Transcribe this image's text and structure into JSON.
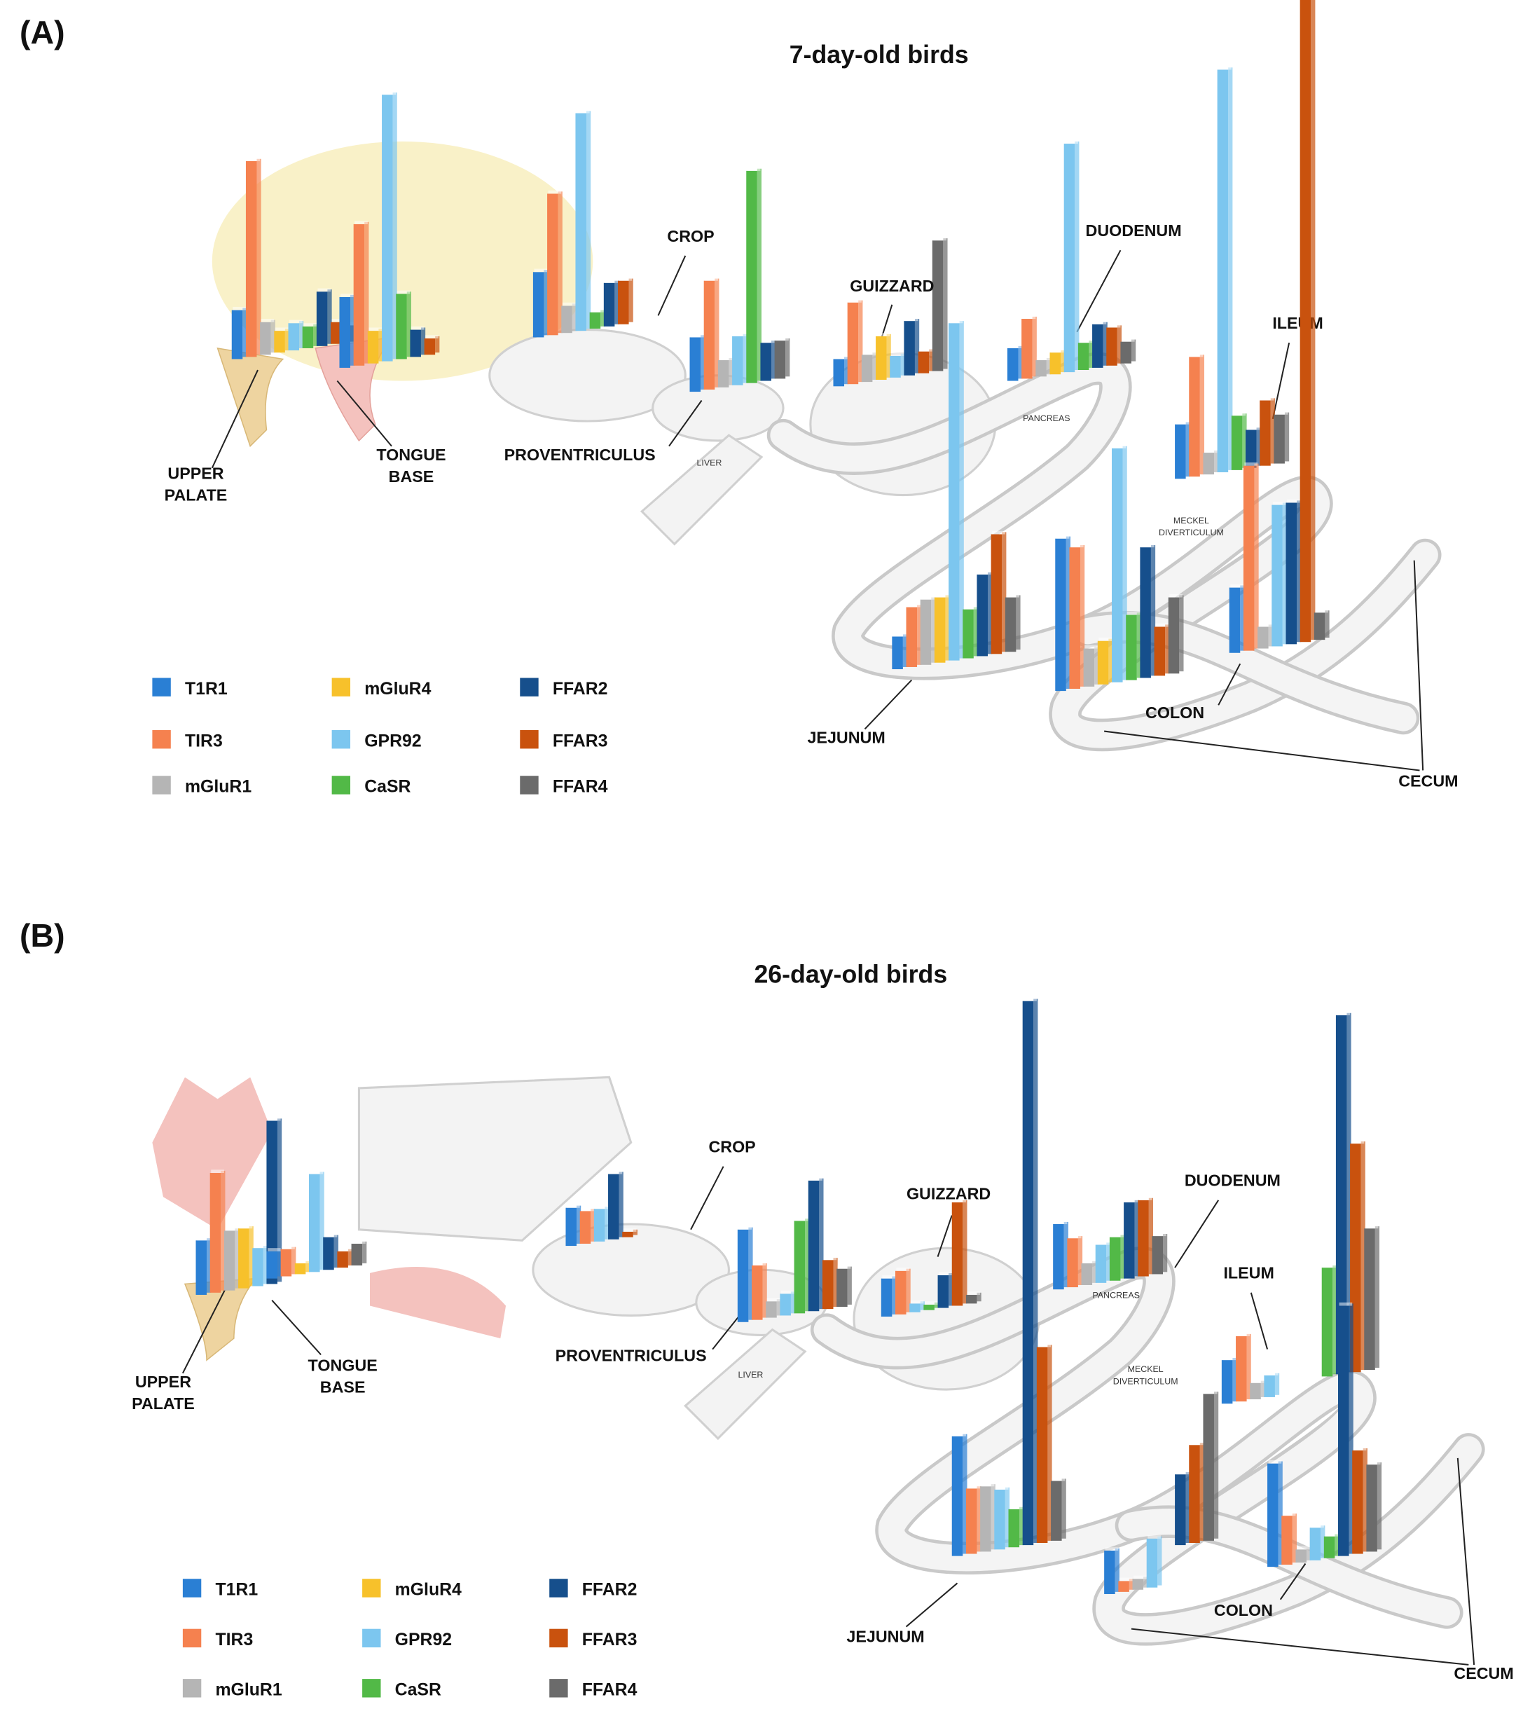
{
  "receptors": [
    {
      "name": "T1R1",
      "color": "#2a7fd4"
    },
    {
      "name": "TIR3",
      "color": "#f5814f"
    },
    {
      "name": "mGluR1",
      "color": "#b5b5b5"
    },
    {
      "name": "mGluR4",
      "color": "#f7c12b"
    },
    {
      "name": "GPR92",
      "color": "#7cc6ef"
    },
    {
      "name": "CaSR",
      "color": "#52b947"
    },
    {
      "name": "FFAR2",
      "color": "#164f8c"
    },
    {
      "name": "FFAR3",
      "color": "#c9520e"
    },
    {
      "name": "FFAR4",
      "color": "#6b6b6b"
    }
  ],
  "panels": [
    {
      "label": "(A)",
      "title": "7-day-old birds",
      "regions": [
        {
          "label": [
            "UPPER",
            "PALATE"
          ],
          "values": [
            45,
            180,
            30,
            20,
            25,
            20,
            50,
            20,
            15
          ]
        },
        {
          "label": [
            "TONGUE",
            "BASE"
          ],
          "values": [
            65,
            130,
            null,
            30,
            245,
            60,
            25,
            15,
            null
          ]
        },
        {
          "label": [
            "PROVENTRICULUS"
          ],
          "values": [
            60,
            130,
            25,
            null,
            200,
            15,
            40,
            40,
            null
          ]
        },
        {
          "label": [
            "CROP"
          ],
          "values": [
            50,
            100,
            25,
            null,
            45,
            195,
            35,
            null,
            35
          ]
        },
        {
          "label": [
            "GUIZZARD"
          ],
          "values": [
            25,
            75,
            25,
            40,
            20,
            null,
            50,
            20,
            120
          ]
        },
        {
          "label": [
            "DUODENUM"
          ],
          "values": [
            30,
            55,
            15,
            20,
            210,
            25,
            40,
            35,
            20
          ]
        },
        {
          "label": [
            "ILEUM"
          ],
          "values": [
            50,
            110,
            20,
            null,
            370,
            50,
            35,
            60,
            45
          ]
        },
        {
          "label": [
            "JEJUNUM"
          ],
          "values": [
            30,
            55,
            60,
            60,
            310,
            45,
            75,
            110,
            50
          ]
        },
        {
          "label": null,
          "values": [
            140,
            130,
            35,
            40,
            215,
            60,
            120,
            45,
            70
          ]
        },
        {
          "label": [
            "COLON"
          ],
          "values": [
            60,
            170,
            20,
            null,
            130,
            null,
            130,
            600,
            25
          ]
        },
        {
          "label": [
            "CECUM"
          ]
        }
      ],
      "annotations": [
        [
          "LIVER"
        ],
        [
          "PANCREAS"
        ],
        [
          "MECKEL",
          "DIVERTICULUM"
        ]
      ]
    },
    {
      "label": "(B)",
      "title": "26-day-old birds",
      "regions": [
        {
          "label": [
            "UPPER",
            "PALATE"
          ],
          "values": [
            50,
            110,
            55,
            55,
            35,
            null,
            150,
            null,
            null
          ]
        },
        {
          "label": [
            "TONGUE",
            "BASE"
          ],
          "values": [
            25,
            25,
            null,
            10,
            90,
            null,
            30,
            15,
            20
          ]
        },
        {
          "label": [
            "PROVENTRICULUS"
          ],
          "values": [
            35,
            30,
            null,
            null,
            30,
            null,
            60,
            5,
            null
          ]
        },
        {
          "label": [
            "CROP"
          ],
          "values": [
            85,
            50,
            15,
            null,
            20,
            85,
            120,
            45,
            35
          ]
        },
        {
          "label": [
            "GUIZZARD"
          ],
          "values": [
            35,
            40,
            null,
            null,
            8,
            5,
            30,
            95,
            8
          ]
        },
        {
          "label": [
            "DUODENUM"
          ],
          "values": [
            60,
            45,
            20,
            null,
            35,
            40,
            70,
            70,
            35
          ]
        },
        {
          "label": [
            "ILEUM"
          ],
          "values": [
            40,
            60,
            15,
            null,
            20,
            null,
            null,
            null,
            null
          ]
        },
        {
          "label": null,
          "values": [
            null,
            null,
            null,
            null,
            null,
            100,
            330,
            210,
            130
          ]
        },
        {
          "label": [
            "JEJUNUM"
          ],
          "values": [
            110,
            60,
            60,
            null,
            55,
            35,
            500,
            180,
            55
          ]
        },
        {
          "label": null,
          "values": [
            null,
            null,
            null,
            null,
            null,
            null,
            65,
            90,
            135
          ]
        },
        {
          "label": null,
          "values": [
            40,
            10,
            10,
            null,
            45,
            null,
            null,
            null,
            null
          ]
        },
        {
          "label": [
            "COLON"
          ],
          "values": [
            95,
            45,
            12,
            null,
            30,
            20,
            230,
            95,
            80
          ]
        },
        {
          "label": [
            "CECUM"
          ]
        }
      ],
      "annotations": [
        [
          "LIVER"
        ],
        [
          "PANCREAS"
        ],
        [
          "MECKEL",
          "DIVERTICULUM"
        ]
      ]
    }
  ]
}
